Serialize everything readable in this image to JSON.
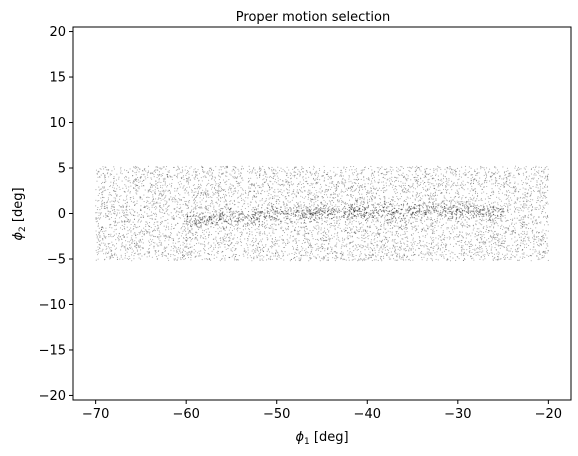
{
  "chart_data": {
    "type": "scatter",
    "title": "Proper motion selection",
    "xlabel": {
      "symbol": "ϕ",
      "subscript": "1",
      "unit": " [deg]"
    },
    "ylabel": {
      "symbol": "ϕ",
      "subscript": "2",
      "unit": " [deg]"
    },
    "xlim": [
      -72.5,
      -17.5
    ],
    "ylim": [
      -20.5,
      20.5
    ],
    "xticks": [
      -70,
      -60,
      -50,
      -40,
      -30,
      -20
    ],
    "xtick_labels": [
      "−70",
      "−60",
      "−50",
      "−40",
      "−30",
      "−20"
    ],
    "yticks": [
      -20,
      -15,
      -10,
      -5,
      0,
      5,
      10,
      15,
      20
    ],
    "ytick_labels": [
      "−20",
      "−15",
      "−10",
      "−5",
      "0",
      "5",
      "10",
      "15",
      "20"
    ],
    "grid": false,
    "marker_color": "#000000",
    "field": {
      "x_range": [
        -70,
        -20
      ],
      "y_range": [
        -5.2,
        5.2
      ]
    },
    "stream": {
      "x_range": [
        -60,
        -25
      ],
      "track": [
        {
          "x": -60,
          "y": -0.8
        },
        {
          "x": -52,
          "y": -0.2
        },
        {
          "x": -47,
          "y": 0.0
        },
        {
          "x": -40,
          "y": 0.1
        },
        {
          "x": -33,
          "y": 0.4
        },
        {
          "x": -25,
          "y": 0.0
        }
      ],
      "width_deg": 0.45
    }
  }
}
